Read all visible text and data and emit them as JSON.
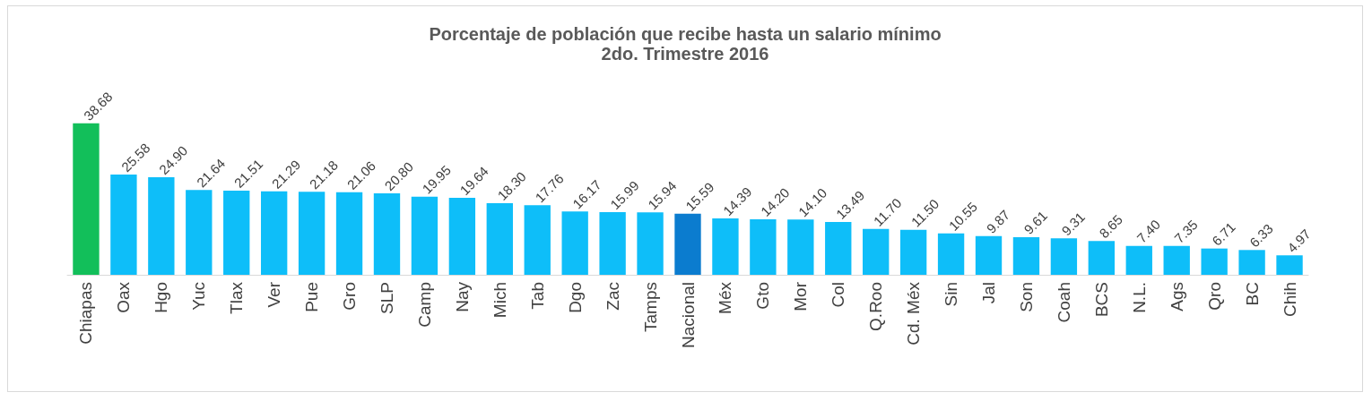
{
  "chart_data": {
    "type": "bar",
    "title": "Porcentaje de población que recibe hasta un salario mínimo",
    "subtitle": "2do. Trimestre 2016",
    "categories": [
      "Chiapas",
      "Oax",
      "Hgo",
      "Yuc",
      "Tlax",
      "Ver",
      "Pue",
      "Gro",
      "SLP",
      "Camp",
      "Nay",
      "Mich",
      "Tab",
      "Dgo",
      "Zac",
      "Tamps",
      "Nacional",
      "Méx",
      "Gto",
      "Mor",
      "Col",
      "Q.Roo",
      "Cd. Méx",
      "Sin",
      "Jal",
      "Son",
      "Coah",
      "BCS",
      "N.L.",
      "Ags",
      "Qro",
      "BC",
      "Chih"
    ],
    "values": [
      38.68,
      25.58,
      24.9,
      21.64,
      21.51,
      21.29,
      21.18,
      21.06,
      20.8,
      19.95,
      19.64,
      18.3,
      17.76,
      16.17,
      15.99,
      15.94,
      15.59,
      14.39,
      14.2,
      14.1,
      13.49,
      11.7,
      11.5,
      10.55,
      9.87,
      9.61,
      9.31,
      8.65,
      7.4,
      7.35,
      6.71,
      6.33,
      4.97
    ],
    "value_labels": [
      "38.68",
      "25.58",
      "24.90",
      "21.64",
      "21.51",
      "21.29",
      "21.18",
      "21.06",
      "20.80",
      "19.95",
      "19.64",
      "18.30",
      "17.76",
      "16.17",
      "15.99",
      "15.94",
      "15.59",
      "14.39",
      "14.20",
      "14.10",
      "13.49",
      "11.70",
      "11.50",
      "10.55",
      "9.87",
      "9.61",
      "9.31",
      "8.65",
      "7.40",
      "7.35",
      "6.71",
      "6.33",
      "4.97"
    ],
    "colors": [
      "#12bf5a",
      "#0ebef9",
      "#0ebef9",
      "#0ebef9",
      "#0ebef9",
      "#0ebef9",
      "#0ebef9",
      "#0ebef9",
      "#0ebef9",
      "#0ebef9",
      "#0ebef9",
      "#0ebef9",
      "#0ebef9",
      "#0ebef9",
      "#0ebef9",
      "#0ebef9",
      "#0b7ccf",
      "#0ebef9",
      "#0ebef9",
      "#0ebef9",
      "#0ebef9",
      "#0ebef9",
      "#0ebef9",
      "#0ebef9",
      "#0ebef9",
      "#0ebef9",
      "#0ebef9",
      "#0ebef9",
      "#0ebef9",
      "#0ebef9",
      "#0ebef9",
      "#0ebef9",
      "#0ebef9"
    ]
  }
}
